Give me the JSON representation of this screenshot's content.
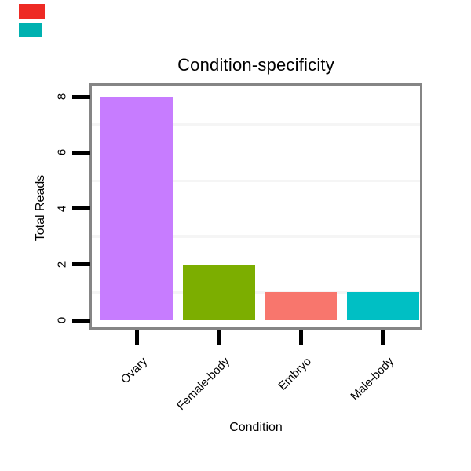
{
  "chart_data": {
    "type": "bar",
    "title": "Condition-specificity",
    "xlabel": "Condition",
    "ylabel": "Total Reads",
    "categories": [
      "Ovary",
      "Female-body",
      "Embryo",
      "Male-body"
    ],
    "values": [
      8,
      2,
      1,
      1
    ],
    "bar_colors": [
      "#C77CFF",
      "#7CAE00",
      "#F8766D",
      "#00BFC4"
    ],
    "yticks": [
      0,
      2,
      4,
      6,
      8
    ],
    "minor_gridlines": [
      1,
      3,
      5,
      7
    ],
    "ylim": [
      0,
      8.4
    ],
    "grid_on": true,
    "grid_color": "#F5F5F5",
    "panel_border_color": "#858585",
    "tick_color": "#000000",
    "legend_position": "none",
    "x_tick_label_angle_deg": 45,
    "y_tick_label_angle_deg": 90
  },
  "annotations": {
    "top_left_marks": [
      {
        "name": "red-mark",
        "color": "#EE2A24"
      },
      {
        "name": "teal-mark",
        "color": "#00B1B0"
      }
    ]
  }
}
